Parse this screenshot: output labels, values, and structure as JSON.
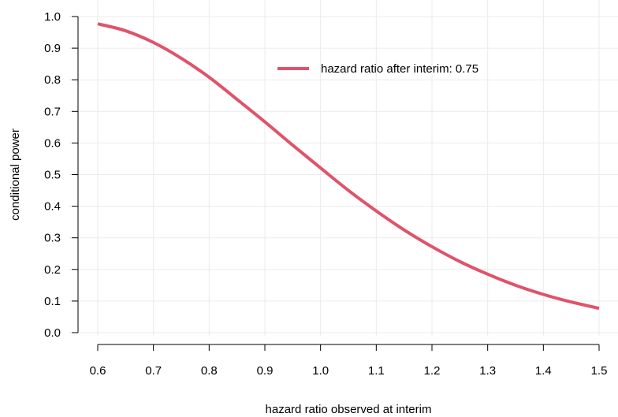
{
  "chart_data": {
    "type": "line",
    "title": "",
    "xlabel": "hazard ratio observed at interim",
    "ylabel": "conditional power",
    "xlim": [
      0.6,
      1.5
    ],
    "ylim": [
      0.0,
      1.0
    ],
    "x_ticks": [
      "0.6",
      "0.7",
      "0.8",
      "0.9",
      "1.0",
      "1.1",
      "1.2",
      "1.3",
      "1.4",
      "1.5"
    ],
    "y_ticks": [
      "0.0",
      "0.1",
      "0.2",
      "0.3",
      "0.4",
      "0.5",
      "0.6",
      "0.7",
      "0.8",
      "0.9",
      "1.0"
    ],
    "grid": true,
    "legend_position": "top-right",
    "series": [
      {
        "name": "hazard ratio after interim: 0.75",
        "color": "#DF536B",
        "x": [
          0.6,
          0.65,
          0.7,
          0.75,
          0.8,
          0.85,
          0.9,
          0.95,
          1.0,
          1.05,
          1.1,
          1.15,
          1.2,
          1.25,
          1.3,
          1.35,
          1.4,
          1.45,
          1.5
        ],
        "y": [
          0.977,
          0.955,
          0.918,
          0.868,
          0.808,
          0.738,
          0.667,
          0.593,
          0.521,
          0.45,
          0.385,
          0.325,
          0.272,
          0.225,
          0.185,
          0.15,
          0.121,
          0.097,
          0.077
        ]
      }
    ]
  }
}
